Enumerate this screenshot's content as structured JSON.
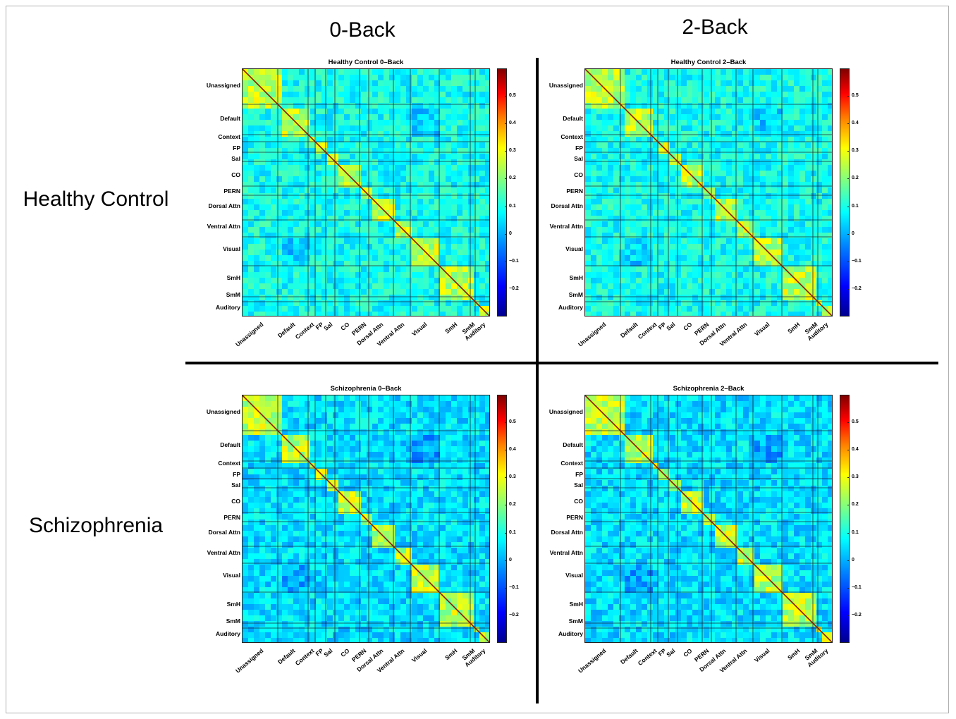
{
  "column_headers": [
    "0-Back",
    "2-Back"
  ],
  "row_headers": [
    "Healthy Control",
    "Schizophrenia"
  ],
  "chart_data": [
    {
      "type": "heatmap",
      "title": "Healthy Control 0–Back",
      "y_networks": [
        "Unassigned",
        "Default",
        "Context",
        "FP",
        "Sal",
        "CO",
        "PERN",
        "Dorsal Attn",
        "Ventral Attn",
        "Visual",
        "SmH",
        "SmM",
        "Auditory"
      ],
      "x_networks": [
        "Unassigned",
        "Default",
        "Context",
        "FP",
        "Sal",
        "CO",
        "PERN",
        "Dorsal Attn",
        "Ventral Attn",
        "Visual",
        "SmH",
        "SmM",
        "Auditory"
      ],
      "colorbar_ticks": [
        "0.5",
        "0.4",
        "0.3",
        "0.2",
        "0.1",
        "0",
        "−0.1",
        "−0.2"
      ],
      "clim": [
        -0.3,
        0.6
      ],
      "colormap": "jet"
    },
    {
      "type": "heatmap",
      "title": "Healthy Control 2–Back",
      "y_networks": [
        "Unassigned",
        "Default",
        "Context",
        "FP",
        "Sal",
        "CO",
        "PERN",
        "Dorsal Attn",
        "Ventral Attn",
        "Visual",
        "SmH",
        "SmM",
        "Auditory"
      ],
      "x_networks": [
        "Unassigned",
        "Default",
        "Context",
        "FP",
        "Sal",
        "CO",
        "PERN",
        "Dorsal Attn",
        "Ventral Attn",
        "Visual",
        "SmH",
        "SmM",
        "Auditory"
      ],
      "colorbar_ticks": [
        "0.5",
        "0.4",
        "0.3",
        "0.2",
        "0.1",
        "0",
        "−0.1",
        "−0.2"
      ],
      "clim": [
        -0.3,
        0.6
      ],
      "colormap": "jet"
    },
    {
      "type": "heatmap",
      "title": "Schizophrenia 0–Back",
      "y_networks": [
        "Unassigned",
        "Default",
        "Context",
        "FP",
        "Sal",
        "CO",
        "PERN",
        "Dorsal Attn",
        "Ventral Attn",
        "Visual",
        "SmH",
        "SmM",
        "Auditory"
      ],
      "x_networks": [
        "Unassigned",
        "Default",
        "Context",
        "FP",
        "Sal",
        "CO",
        "PERN",
        "Dorsal Attn",
        "Ventral Attn",
        "Visual",
        "SmH",
        "SmM",
        "Auditory"
      ],
      "colorbar_ticks": [
        "0.5",
        "0.4",
        "0.3",
        "0.2",
        "0.1",
        "0",
        "−0.1",
        "−0.2"
      ],
      "clim": [
        -0.3,
        0.6
      ],
      "colormap": "jet"
    },
    {
      "type": "heatmap",
      "title": "Schizophrenia 2–Back",
      "y_networks": [
        "Unassigned",
        "Default",
        "Context",
        "FP",
        "Sal",
        "CO",
        "PERN",
        "Dorsal Attn",
        "Ventral Attn",
        "Visual",
        "SmH",
        "SmM",
        "Auditory"
      ],
      "x_networks": [
        "Unassigned",
        "Default",
        "Context",
        "FP",
        "Sal",
        "CO",
        "PERN",
        "Dorsal Attn",
        "Ventral Attn",
        "Visual",
        "SmH",
        "SmM",
        "Auditory"
      ],
      "colorbar_ticks": [
        "0.5",
        "0.4",
        "0.3",
        "0.2",
        "0.1",
        "0",
        "−0.1",
        "−0.2"
      ],
      "clim": [
        -0.3,
        0.6
      ],
      "colormap": "jet"
    }
  ]
}
